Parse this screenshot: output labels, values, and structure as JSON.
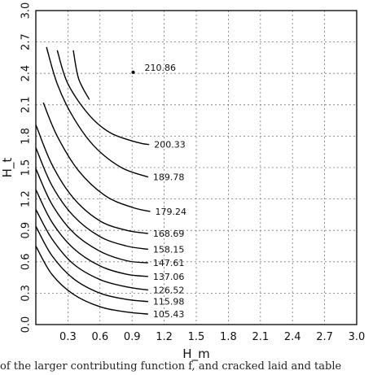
{
  "chart_data": {
    "type": "contour",
    "title": "",
    "xlabel": "H_m",
    "ylabel": "H_t",
    "xlim": [
      0.0,
      3.0
    ],
    "ylim": [
      0.0,
      3.0
    ],
    "xticks": [
      "0.3",
      "0.6",
      "0.9",
      "1.2",
      "1.5",
      "1.8",
      "2.1",
      "2.4",
      "2.7",
      "3.0"
    ],
    "yticks": [
      "0.0",
      "0.3",
      "0.6",
      "0.9",
      "1.2",
      "1.5",
      "1.8",
      "2.1",
      "2.4",
      "2.7",
      "3.0"
    ],
    "grid": true,
    "contours": [
      {
        "level": "105.43",
        "points": [
          [
            0.0,
            0.75
          ],
          [
            0.15,
            0.48
          ],
          [
            0.35,
            0.29
          ],
          [
            0.6,
            0.17
          ],
          [
            0.85,
            0.12
          ],
          [
            1.05,
            0.1
          ]
        ]
      },
      {
        "level": "115.98",
        "points": [
          [
            0.0,
            0.94
          ],
          [
            0.15,
            0.66
          ],
          [
            0.35,
            0.44
          ],
          [
            0.6,
            0.3
          ],
          [
            0.85,
            0.24
          ],
          [
            1.05,
            0.22
          ]
        ]
      },
      {
        "level": "126.52",
        "points": [
          [
            0.0,
            1.1
          ],
          [
            0.15,
            0.82
          ],
          [
            0.35,
            0.58
          ],
          [
            0.6,
            0.43
          ],
          [
            0.85,
            0.36
          ],
          [
            1.05,
            0.33
          ]
        ]
      },
      {
        "level": "137.06",
        "points": [
          [
            0.0,
            1.29
          ],
          [
            0.15,
            0.98
          ],
          [
            0.35,
            0.73
          ],
          [
            0.6,
            0.56
          ],
          [
            0.85,
            0.48
          ],
          [
            1.05,
            0.46
          ]
        ]
      },
      {
        "level": "147.61",
        "points": [
          [
            0.0,
            1.49
          ],
          [
            0.15,
            1.15
          ],
          [
            0.35,
            0.88
          ],
          [
            0.6,
            0.7
          ],
          [
            0.85,
            0.61
          ],
          [
            1.05,
            0.59
          ]
        ]
      },
      {
        "level": "158.15",
        "points": [
          [
            0.0,
            1.69
          ],
          [
            0.15,
            1.33
          ],
          [
            0.35,
            1.04
          ],
          [
            0.6,
            0.84
          ],
          [
            0.85,
            0.75
          ],
          [
            1.05,
            0.72
          ]
        ]
      },
      {
        "level": "168.69",
        "points": [
          [
            0.0,
            1.91
          ],
          [
            0.15,
            1.53
          ],
          [
            0.35,
            1.21
          ],
          [
            0.6,
            0.99
          ],
          [
            0.85,
            0.9
          ],
          [
            1.05,
            0.87
          ]
        ]
      },
      {
        "level": "179.24",
        "points": [
          [
            0.07,
            2.12
          ],
          [
            0.2,
            1.8
          ],
          [
            0.4,
            1.47
          ],
          [
            0.65,
            1.23
          ],
          [
            0.9,
            1.12
          ],
          [
            1.07,
            1.08
          ]
        ]
      },
      {
        "level": "189.78",
        "points": [
          [
            0.1,
            2.65
          ],
          [
            0.2,
            2.3
          ],
          [
            0.35,
            1.98
          ],
          [
            0.55,
            1.7
          ],
          [
            0.8,
            1.5
          ],
          [
            1.05,
            1.41
          ]
        ]
      },
      {
        "level": "200.33",
        "points": [
          [
            0.2,
            2.62
          ],
          [
            0.3,
            2.3
          ],
          [
            0.5,
            2.0
          ],
          [
            0.7,
            1.83
          ],
          [
            0.95,
            1.74
          ],
          [
            1.06,
            1.72
          ]
        ]
      },
      {
        "level": "210.86",
        "points": [
          [
            0.35,
            2.62
          ],
          [
            0.45,
            2.3
          ],
          [
            0.6,
            2.05
          ],
          [
            0.8,
            1.87
          ],
          [
            1.0,
            1.78
          ]
        ]
      }
    ],
    "marker": {
      "x": 0.91,
      "y": 2.41
    },
    "label_210_86_pos": "near marker"
  },
  "caption": {
    "text": "of the larger contributing function f, and cracked laid and table"
  }
}
